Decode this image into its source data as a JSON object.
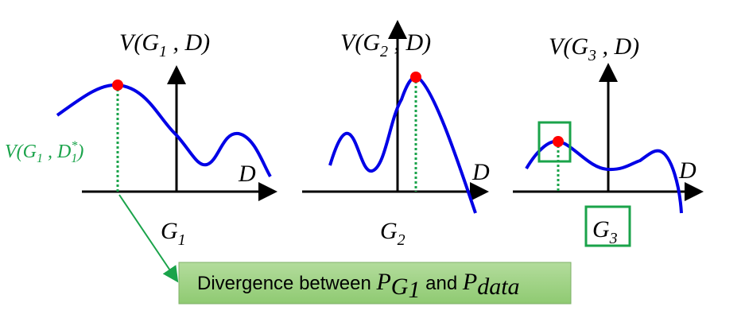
{
  "panels": [
    {
      "title": {
        "main": "V(G",
        "sub": "1",
        "rest": " , D)"
      },
      "axis_label": "D",
      "generator": {
        "main": "G",
        "sub": "1"
      }
    },
    {
      "title": {
        "main": "V(G",
        "sub": "2",
        "rest": " , D)"
      },
      "axis_label": "D",
      "generator": {
        "main": "G",
        "sub": "2"
      }
    },
    {
      "title": {
        "main": "V(G",
        "sub": "3",
        "rest": " , D)"
      },
      "axis_label": "D",
      "generator": {
        "main": "G",
        "sub": "3"
      }
    }
  ],
  "optimum_label": {
    "main": "V(G",
    "sub1": "1",
    "mid": " , D",
    "sup": "*",
    "sub2": "1",
    "end": ")"
  },
  "divergence": {
    "text": "Divergence between ",
    "p1": "P",
    "p1_sub": "G",
    "p1_subsub": "1",
    "and": " and ",
    "p2": "P",
    "p2_sub": "data"
  }
}
